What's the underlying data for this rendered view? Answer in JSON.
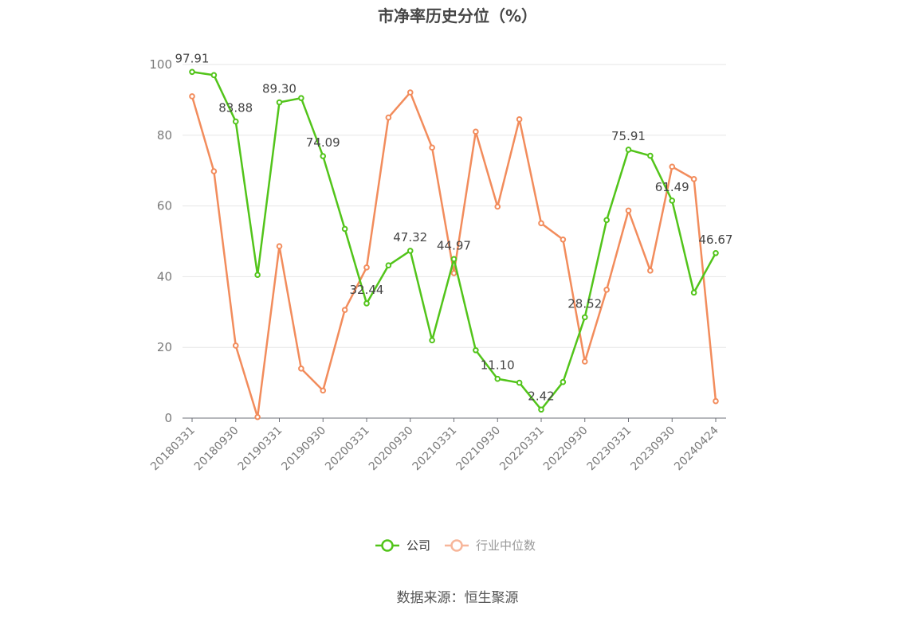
{
  "chart_data": {
    "type": "line",
    "title": "市净率历史分位（%）",
    "ylim": [
      0,
      100
    ],
    "yticks": [
      0,
      20,
      40,
      60,
      80,
      100
    ],
    "grid": true,
    "legend_position": "bottom-center",
    "x_tick_labels": [
      "20180331",
      "20180930",
      "20190331",
      "20190930",
      "20200331",
      "20200930",
      "20210331",
      "20210930",
      "20220331",
      "20220930",
      "20230331",
      "20230930",
      "20240424"
    ],
    "x": [
      "20180331",
      "20180630",
      "20180930",
      "20181231",
      "20190331",
      "20190630",
      "20190930",
      "20191231",
      "20200331",
      "20200630",
      "20200930",
      "20201231",
      "20210331",
      "20210630",
      "20210930",
      "20211231",
      "20220331",
      "20220630",
      "20220930",
      "20221231",
      "20230331",
      "20230630",
      "20230930",
      "20231231",
      "20240424"
    ],
    "series": [
      {
        "name": "公司",
        "color": "#52c41a",
        "values": [
          97.91,
          97.0,
          83.88,
          40.5,
          89.3,
          90.5,
          74.09,
          53.5,
          32.44,
          43.2,
          47.32,
          22.0,
          44.97,
          19.2,
          11.1,
          10.0,
          2.42,
          10.2,
          28.52,
          56.0,
          75.91,
          74.2,
          61.49,
          35.5,
          46.67
        ],
        "labels": [
          "97.91",
          null,
          "83.88",
          null,
          "89.30",
          null,
          "74.09",
          null,
          "32.44",
          null,
          "47.32",
          null,
          "44.97",
          null,
          "11.10",
          null,
          "2.42",
          null,
          "28.52",
          null,
          "75.91",
          null,
          "61.49",
          null,
          "46.67"
        ]
      },
      {
        "name": "行业中位数",
        "color": "#f28c5c",
        "values": [
          91.0,
          69.8,
          20.5,
          0.3,
          48.6,
          14.0,
          7.8,
          30.6,
          42.6,
          85.0,
          92.1,
          76.5,
          41.0,
          81.0,
          59.8,
          84.5,
          55.1,
          50.5,
          16.0,
          36.3,
          58.7,
          41.7,
          71.1,
          67.6,
          4.8
        ]
      }
    ]
  },
  "footer": {
    "source": "数据来源：恒生聚源"
  }
}
